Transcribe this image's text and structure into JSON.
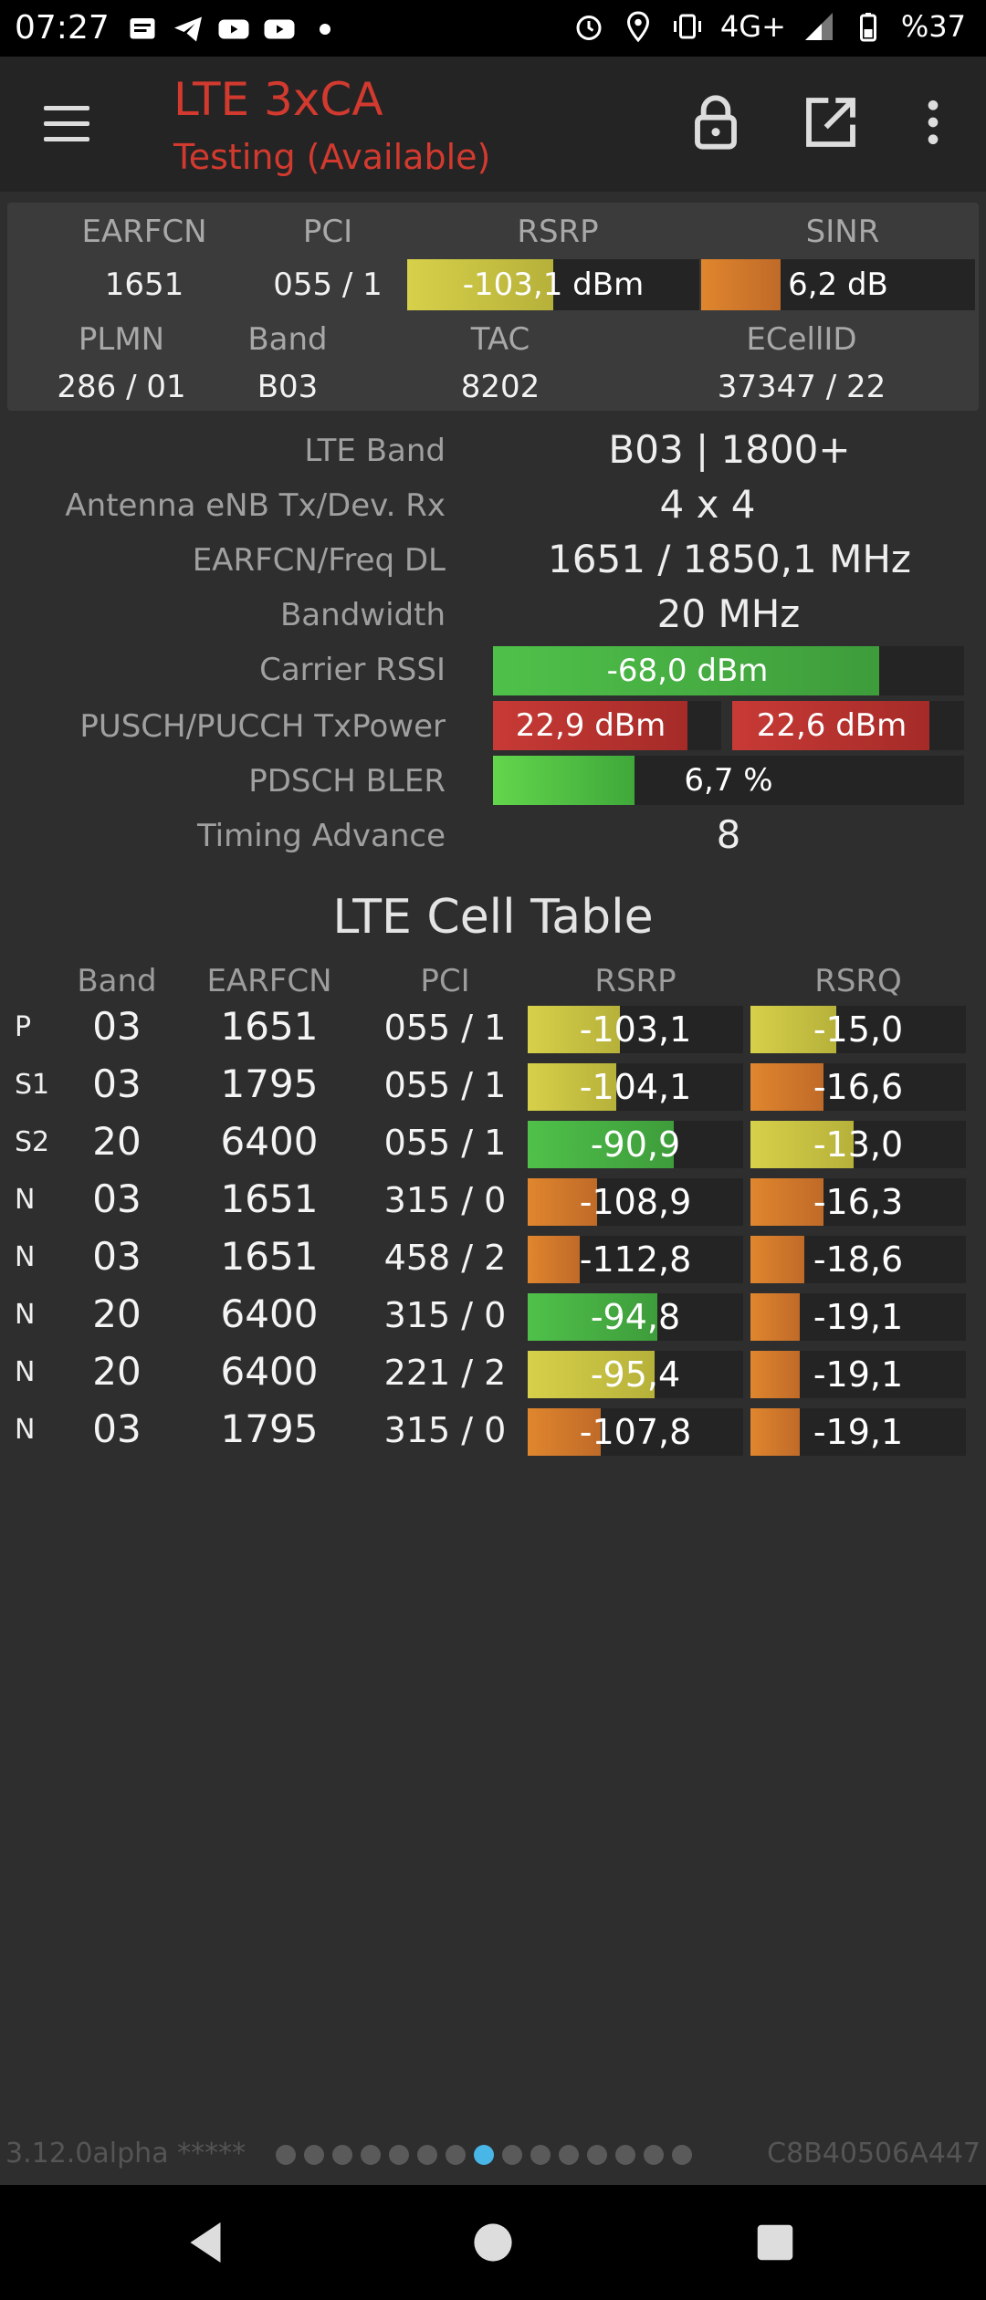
{
  "status_bar": {
    "time": "07:27",
    "network": "4G+",
    "battery": "%37",
    "left_icons": [
      "message-icon",
      "telegram-icon",
      "youtube-icon",
      "youtube-icon",
      "dot-icon"
    ],
    "right_icons": [
      "alarm-icon",
      "location-icon",
      "vibrate-icon",
      "signal-icon",
      "battery-icon"
    ]
  },
  "app_bar": {
    "title": "LTE 3xCA",
    "subtitle": "Testing (Available)",
    "title_color": "#d23a2f",
    "actions": [
      "lock-icon",
      "open-external-icon",
      "more-vert-icon"
    ]
  },
  "summary": {
    "labels": {
      "earfcn": "EARFCN",
      "pci": "PCI",
      "rsrp": "RSRP",
      "sinr": "SINR",
      "plmn": "PLMN",
      "band": "Band",
      "tac": "TAC",
      "ecellid": "ECellID"
    },
    "earfcn": "1651",
    "pci": "055 / 1",
    "rsrp": {
      "text": "-103,1 dBm",
      "level": 0.5,
      "color": "yellow"
    },
    "sinr": {
      "text": "6,2 dB",
      "level": 0.29,
      "color": "orange"
    },
    "plmn": "286 / 01",
    "band": "B03",
    "tac": "8202",
    "ecellid": "37347 / 22"
  },
  "details": {
    "lte_band": {
      "label": "LTE Band",
      "value": "B03 | 1800+"
    },
    "antenna": {
      "label": "Antenna eNB Tx/Dev. Rx",
      "value": "4 x 4"
    },
    "earfcn_freq": {
      "label": "EARFCN/Freq DL",
      "value": "1651 / 1850,1 MHz"
    },
    "bandwidth": {
      "label": "Bandwidth",
      "value": "20 MHz"
    },
    "carrier_rssi": {
      "label": "Carrier RSSI",
      "text": "-68,0 dBm",
      "level": 0.82,
      "color": "green"
    },
    "tx_power": {
      "label": "PUSCH/PUCCH TxPower",
      "pusch": {
        "text": "22,9 dBm",
        "level": 0.85,
        "color": "red"
      },
      "pucch": {
        "text": "22,6 dBm",
        "level": 0.85,
        "color": "red"
      }
    },
    "bler": {
      "label": "PDSCH BLER",
      "text": "6,7 %",
      "level": 0.3,
      "color": "lgreen"
    },
    "timing_advance": {
      "label": "Timing Advance",
      "value": "8"
    }
  },
  "cell_table": {
    "title": "LTE Cell Table",
    "headers": {
      "band": "Band",
      "earfcn": "EARFCN",
      "pci": "PCI",
      "rsrp": "RSRP",
      "rsrq": "RSRQ"
    },
    "rows": [
      {
        "type": "P",
        "band": "03",
        "earfcn": "1651",
        "pci": "055 / 1",
        "rsrp": "-103,1",
        "rsrp_level": 0.43,
        "rsrp_color": "yellow",
        "rsrq": "-15,0",
        "rsrq_level": 0.4,
        "rsrq_color": "yellow"
      },
      {
        "type": "S1",
        "band": "03",
        "earfcn": "1795",
        "pci": "055 / 1",
        "rsrp": "-104,1",
        "rsrp_level": 0.41,
        "rsrp_color": "yellow",
        "rsrq": "-16,6",
        "rsrq_level": 0.34,
        "rsrq_color": "orange"
      },
      {
        "type": "S2",
        "band": "20",
        "earfcn": "6400",
        "pci": "055 / 1",
        "rsrp": "-90,9",
        "rsrp_level": 0.68,
        "rsrp_color": "green",
        "rsrq": "-13,0",
        "rsrq_level": 0.48,
        "rsrq_color": "yellow"
      },
      {
        "type": "N",
        "band": "03",
        "earfcn": "1651",
        "pci": "315 / 0",
        "rsrp": "-108,9",
        "rsrp_level": 0.32,
        "rsrp_color": "orange",
        "rsrq": "-16,3",
        "rsrq_level": 0.34,
        "rsrq_color": "orange"
      },
      {
        "type": "N",
        "band": "03",
        "earfcn": "1651",
        "pci": "458 / 2",
        "rsrp": "-112,8",
        "rsrp_level": 0.24,
        "rsrp_color": "orange",
        "rsrq": "-18,6",
        "rsrq_level": 0.25,
        "rsrq_color": "orange"
      },
      {
        "type": "N",
        "band": "20",
        "earfcn": "6400",
        "pci": "315 / 0",
        "rsrp": "-94,8",
        "rsrp_level": 0.6,
        "rsrp_color": "green",
        "rsrq": "-19,1",
        "rsrq_level": 0.23,
        "rsrq_color": "orange"
      },
      {
        "type": "N",
        "band": "20",
        "earfcn": "6400",
        "pci": "221 / 2",
        "rsrp": "-95,4",
        "rsrp_level": 0.59,
        "rsrp_color": "yellow",
        "rsrq": "-19,1",
        "rsrq_level": 0.23,
        "rsrq_color": "orange"
      },
      {
        "type": "N",
        "band": "03",
        "earfcn": "1795",
        "pci": "315 / 0",
        "rsrp": "-107,8",
        "rsrp_level": 0.34,
        "rsrp_color": "orange",
        "rsrq": "-19,1",
        "rsrq_level": 0.23,
        "rsrq_color": "orange"
      }
    ]
  },
  "footer": {
    "version": "3.12.0alpha *****",
    "device_id": "C8B40506A447",
    "page_count": 15,
    "active_page": 8
  },
  "nav_bar": [
    "back-icon",
    "home-icon",
    "recents-icon"
  ]
}
